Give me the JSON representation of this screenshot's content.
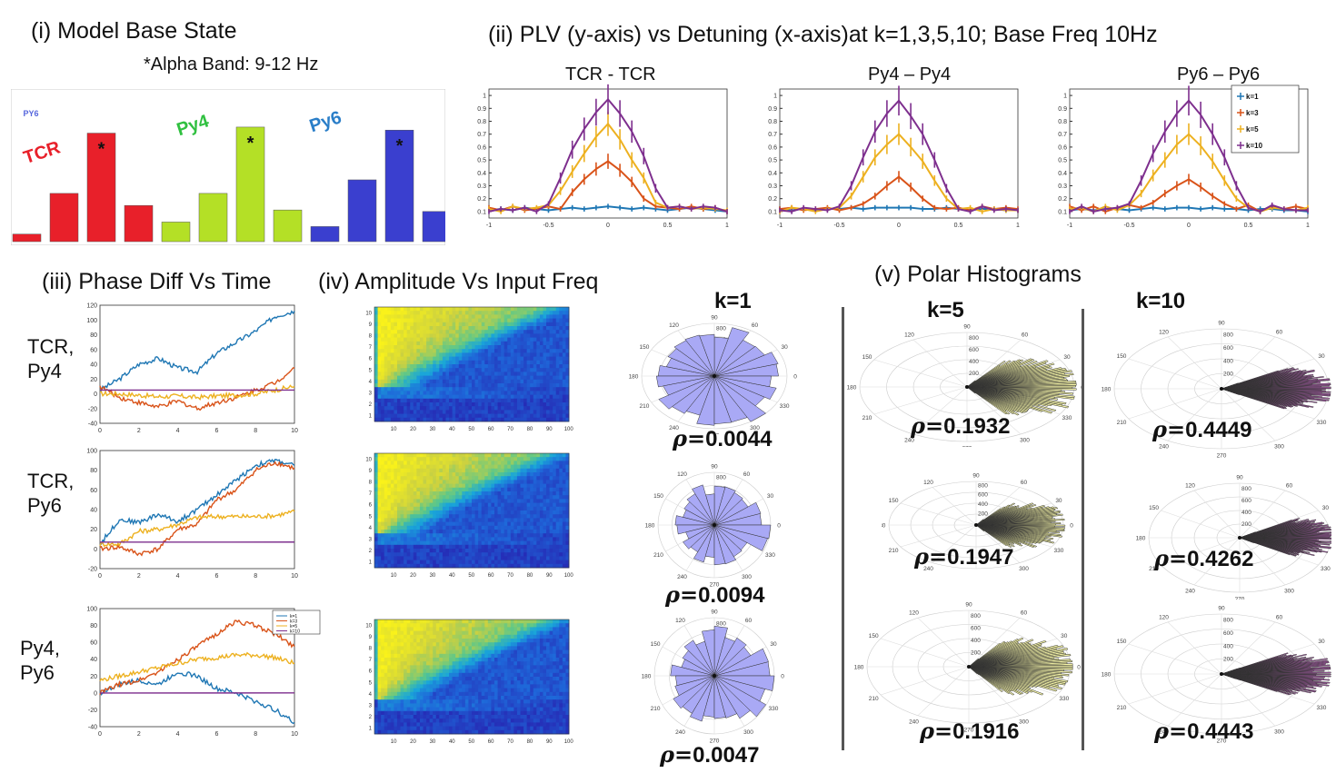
{
  "titles": {
    "base_state": "(i) Model Base State",
    "alpha_note": "*Alpha Band: 9-12 Hz",
    "plv": "(ii) PLV (y-axis) vs Detuning (x-axis)at k=1,3,5,10; Base Freq 10Hz",
    "phase": "(iii) Phase Diff Vs Time",
    "amp": "(iv) Amplitude Vs Input Freq",
    "polar": "(v) Polar Histograms"
  },
  "plv_titles": [
    "TCR - TCR",
    "Py4 – Py4",
    "Py6 – Py6"
  ],
  "row_labels": [
    {
      "a": "TCR,",
      "b": "Py4"
    },
    {
      "a": "TCR,",
      "b": "Py6"
    },
    {
      "a": "Py4,",
      "b": "Py6"
    }
  ],
  "k_labels": [
    "k=1",
    "k=5",
    "k=10"
  ],
  "rho": [
    [
      "0.0044",
      "0.0094",
      "0.0047"
    ],
    [
      "0.1932",
      "0.1947",
      "0.1916"
    ],
    [
      "0.4449",
      "0.4262",
      "0.4443"
    ]
  ],
  "rho_symbol": "ρ=",
  "colors": {
    "tcr": "#e8202a",
    "py4": "#b4e026",
    "py6": "#3a3fcf",
    "k1": "#1f77b4",
    "k3": "#d95319",
    "k5": "#edb120",
    "k10": "#7e2f8e",
    "polar1": "#a9a9f5",
    "polar5": "#f6f5a8",
    "polar10": "#cf69cf"
  },
  "chart_data": [
    {
      "type": "bar",
      "id": "base_state",
      "groups": [
        "TCR",
        "Py4",
        "Py6"
      ],
      "faint_label": "PY6",
      "values": [
        [
          0.05,
          0.32,
          0.72,
          0.24
        ],
        [
          0.13,
          0.32,
          0.76,
          0.21
        ],
        [
          0.1,
          0.41,
          0.74,
          0.2
        ]
      ],
      "marker": "*",
      "marked_index": 2
    },
    {
      "type": "line",
      "id": "plv",
      "x": [
        -1,
        -0.9,
        -0.8,
        -0.7,
        -0.6,
        -0.5,
        -0.4,
        -0.3,
        -0.2,
        -0.1,
        0,
        0.1,
        0.2,
        0.3,
        0.4,
        0.5,
        0.6,
        0.7,
        0.8,
        0.9,
        1
      ],
      "xticks": [
        -1,
        -0.5,
        0,
        0.5,
        1
      ],
      "yticks": [
        0.1,
        0.2,
        0.3,
        0.4,
        0.5,
        0.6,
        0.7,
        0.8,
        0.9,
        1
      ],
      "ylim": [
        0.05,
        1.05
      ],
      "legend": [
        "k=1",
        "k=3",
        "k=5",
        "k=10"
      ],
      "panels": [
        {
          "k1": [
            0.11,
            0.12,
            0.11,
            0.13,
            0.12,
            0.11,
            0.12,
            0.13,
            0.12,
            0.13,
            0.14,
            0.13,
            0.12,
            0.13,
            0.12,
            0.11,
            0.12,
            0.13,
            0.12,
            0.11,
            0.1
          ],
          "k3": [
            0.13,
            0.11,
            0.14,
            0.11,
            0.12,
            0.14,
            0.12,
            0.25,
            0.35,
            0.43,
            0.49,
            0.42,
            0.33,
            0.2,
            0.14,
            0.13,
            0.12,
            0.14,
            0.12,
            0.13,
            0.1
          ],
          "k5": [
            0.12,
            0.1,
            0.14,
            0.12,
            0.13,
            0.15,
            0.26,
            0.41,
            0.55,
            0.68,
            0.78,
            0.66,
            0.5,
            0.36,
            0.17,
            0.13,
            0.14,
            0.12,
            0.13,
            0.12,
            0.11
          ],
          "k10": [
            0.1,
            0.12,
            0.11,
            0.13,
            0.1,
            0.16,
            0.36,
            0.58,
            0.74,
            0.87,
            0.97,
            0.86,
            0.72,
            0.53,
            0.28,
            0.13,
            0.14,
            0.12,
            0.14,
            0.13,
            0.1
          ]
        },
        {
          "k1": [
            0.12,
            0.11,
            0.12,
            0.11,
            0.12,
            0.12,
            0.13,
            0.12,
            0.13,
            0.13,
            0.13,
            0.13,
            0.12,
            0.12,
            0.13,
            0.12,
            0.11,
            0.12,
            0.12,
            0.11,
            0.11
          ],
          "k3": [
            0.12,
            0.13,
            0.11,
            0.12,
            0.13,
            0.11,
            0.13,
            0.16,
            0.22,
            0.3,
            0.37,
            0.29,
            0.2,
            0.13,
            0.12,
            0.13,
            0.11,
            0.14,
            0.12,
            0.13,
            0.12
          ],
          "k5": [
            0.1,
            0.13,
            0.12,
            0.1,
            0.12,
            0.13,
            0.22,
            0.37,
            0.52,
            0.62,
            0.7,
            0.6,
            0.49,
            0.34,
            0.2,
            0.12,
            0.13,
            0.1,
            0.12,
            0.11,
            0.11
          ],
          "k10": [
            0.11,
            0.1,
            0.13,
            0.12,
            0.11,
            0.14,
            0.3,
            0.52,
            0.72,
            0.86,
            0.96,
            0.84,
            0.7,
            0.5,
            0.28,
            0.12,
            0.1,
            0.14,
            0.11,
            0.12,
            0.11
          ]
        },
        {
          "k1": [
            0.11,
            0.12,
            0.11,
            0.12,
            0.12,
            0.11,
            0.12,
            0.13,
            0.12,
            0.13,
            0.13,
            0.12,
            0.13,
            0.12,
            0.12,
            0.11,
            0.12,
            0.12,
            0.11,
            0.11,
            0.1
          ],
          "k3": [
            0.14,
            0.11,
            0.14,
            0.1,
            0.13,
            0.15,
            0.13,
            0.17,
            0.24,
            0.3,
            0.35,
            0.29,
            0.22,
            0.16,
            0.12,
            0.15,
            0.1,
            0.14,
            0.12,
            0.14,
            0.12
          ],
          "k5": [
            0.12,
            0.13,
            0.1,
            0.14,
            0.11,
            0.15,
            0.24,
            0.38,
            0.5,
            0.62,
            0.7,
            0.61,
            0.49,
            0.34,
            0.2,
            0.13,
            0.1,
            0.13,
            0.12,
            0.11,
            0.13
          ],
          "k10": [
            0.1,
            0.14,
            0.1,
            0.12,
            0.13,
            0.16,
            0.34,
            0.55,
            0.72,
            0.86,
            0.96,
            0.85,
            0.7,
            0.52,
            0.3,
            0.13,
            0.1,
            0.15,
            0.12,
            0.11,
            0.11
          ]
        }
      ]
    },
    {
      "type": "line",
      "id": "phase_diff",
      "xticks": [
        0,
        2,
        4,
        6,
        8,
        10
      ],
      "legend": [
        "k=1",
        "k=3",
        "k=5",
        "k=10"
      ],
      "panels": [
        {
          "yticks": [
            -40,
            -20,
            0,
            20,
            40,
            60,
            80,
            100,
            120
          ],
          "ylim": [
            -40,
            120
          ],
          "k1": [
            [
              0,
              5
            ],
            [
              1,
              20
            ],
            [
              2,
              40
            ],
            [
              3,
              48
            ],
            [
              4,
              35
            ],
            [
              5,
              30
            ],
            [
              6,
              55
            ],
            [
              7,
              70
            ],
            [
              8,
              85
            ],
            [
              9,
              105
            ],
            [
              10,
              112
            ]
          ],
          "k3": [
            [
              0,
              10
            ],
            [
              1,
              -5
            ],
            [
              2,
              -12
            ],
            [
              3,
              -18
            ],
            [
              4,
              -10
            ],
            [
              5,
              -20
            ],
            [
              6,
              -12
            ],
            [
              7,
              -5
            ],
            [
              8,
              5
            ],
            [
              9,
              15
            ],
            [
              10,
              35
            ]
          ],
          "k5": [
            [
              0,
              0
            ],
            [
              1,
              0
            ],
            [
              2,
              -2
            ],
            [
              3,
              -4
            ],
            [
              4,
              -3
            ],
            [
              5,
              -5
            ],
            [
              6,
              -3
            ],
            [
              7,
              -2
            ],
            [
              8,
              0
            ],
            [
              9,
              5
            ],
            [
              10,
              10
            ]
          ],
          "k10": [
            [
              0,
              5
            ],
            [
              10,
              5
            ]
          ]
        },
        {
          "yticks": [
            -20,
            0,
            20,
            40,
            60,
            80,
            100
          ],
          "ylim": [
            -20,
            100
          ],
          "k1": [
            [
              0,
              5
            ],
            [
              1,
              30
            ],
            [
              2,
              27
            ],
            [
              3,
              35
            ],
            [
              4,
              28
            ],
            [
              5,
              40
            ],
            [
              6,
              55
            ],
            [
              7,
              70
            ],
            [
              8,
              85
            ],
            [
              9,
              90
            ],
            [
              10,
              85
            ]
          ],
          "k3": [
            [
              0,
              0
            ],
            [
              1,
              2
            ],
            [
              2,
              -5
            ],
            [
              3,
              0
            ],
            [
              4,
              20
            ],
            [
              5,
              25
            ],
            [
              6,
              50
            ],
            [
              7,
              60
            ],
            [
              8,
              80
            ],
            [
              9,
              88
            ],
            [
              10,
              82
            ]
          ],
          "k5": [
            [
              0,
              5
            ],
            [
              1,
              5
            ],
            [
              2,
              18
            ],
            [
              3,
              20
            ],
            [
              4,
              25
            ],
            [
              5,
              32
            ],
            [
              6,
              33
            ],
            [
              7,
              33
            ],
            [
              8,
              33
            ],
            [
              9,
              34
            ],
            [
              10,
              38
            ]
          ],
          "k10": [
            [
              0,
              7
            ],
            [
              10,
              7
            ]
          ]
        },
        {
          "yticks": [
            -40,
            -20,
            0,
            20,
            40,
            60,
            80,
            100
          ],
          "ylim": [
            -40,
            100
          ],
          "k1": [
            [
              0,
              0
            ],
            [
              1,
              10
            ],
            [
              2,
              15
            ],
            [
              3,
              10
            ],
            [
              4,
              25
            ],
            [
              5,
              20
            ],
            [
              6,
              5
            ],
            [
              7,
              0
            ],
            [
              8,
              -10
            ],
            [
              9,
              -20
            ],
            [
              10,
              -35
            ]
          ],
          "k3": [
            [
              0,
              0
            ],
            [
              1,
              10
            ],
            [
              2,
              15
            ],
            [
              3,
              25
            ],
            [
              4,
              40
            ],
            [
              5,
              55
            ],
            [
              6,
              70
            ],
            [
              7,
              85
            ],
            [
              8,
              80
            ],
            [
              9,
              70
            ],
            [
              10,
              55
            ]
          ],
          "k5": [
            [
              0,
              15
            ],
            [
              1,
              20
            ],
            [
              2,
              25
            ],
            [
              3,
              30
            ],
            [
              4,
              35
            ],
            [
              5,
              40
            ],
            [
              6,
              42
            ],
            [
              7,
              45
            ],
            [
              8,
              45
            ],
            [
              9,
              42
            ],
            [
              10,
              35
            ]
          ],
          "k10": [
            [
              0,
              0
            ],
            [
              10,
              0
            ]
          ]
        }
      ]
    },
    {
      "type": "heatmap",
      "id": "amplitude",
      "xticks": [
        10,
        20,
        30,
        40,
        50,
        60,
        70,
        80,
        90,
        100
      ],
      "yticks": [
        1,
        2,
        3,
        4,
        5,
        6,
        7,
        8,
        9,
        10
      ],
      "panels": 3
    },
    {
      "type": "polar",
      "id": "polar_hist",
      "angle_ticks": [
        0,
        30,
        60,
        90,
        120,
        150,
        180,
        210,
        240,
        270,
        300,
        330
      ],
      "radial_ticks": [
        200,
        400,
        600,
        800
      ],
      "concentration_k": [
        0.15,
        1.5,
        3.5
      ],
      "bins": 24
    }
  ]
}
